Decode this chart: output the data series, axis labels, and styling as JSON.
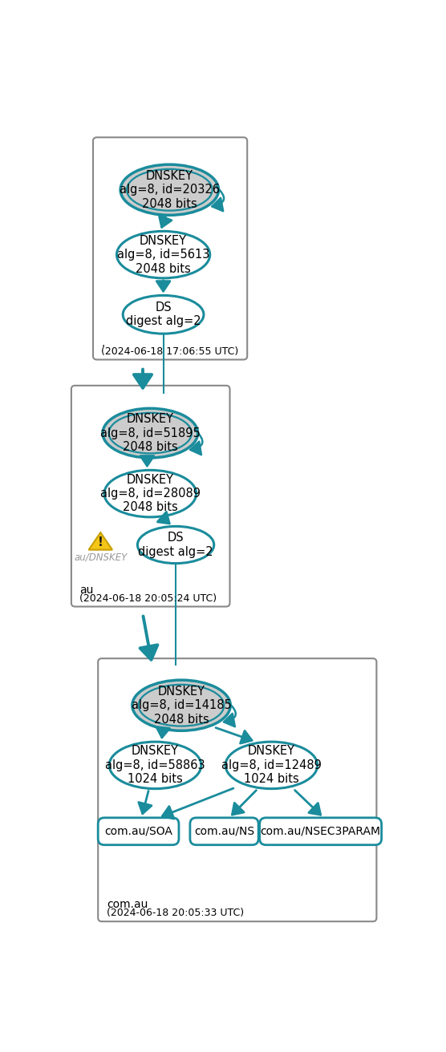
{
  "teal": "#1a8c9c",
  "gray_fill": "#cccccc",
  "white_fill": "#ffffff",
  "warn_yellow": "#f5c518",
  "warn_edge": "#c8a000",
  "zone1_label": ".",
  "zone1_time": "(2024-06-18 17:06:55 UTC)",
  "zone1_ksk": "DNSKEY\nalg=8, id=20326\n2048 bits",
  "zone1_zsk": "DNSKEY\nalg=8, id=5613\n2048 bits",
  "zone1_ds": "DS\ndigest alg=2",
  "zone2_label": "au",
  "zone2_time": "(2024-06-18 20:05:24 UTC)",
  "zone2_ksk": "DNSKEY\nalg=8, id=51895\n2048 bits",
  "zone2_zsk": "DNSKEY\nalg=8, id=28089\n2048 bits",
  "zone2_ds": "DS\ndigest alg=2",
  "zone2_warn": "au/DNSKEY",
  "zone3_label": "com.au",
  "zone3_time": "(2024-06-18 20:05:33 UTC)",
  "zone3_ksk": "DNSKEY\nalg=8, id=14185\n2048 bits",
  "zone3_zsk1": "DNSKEY\nalg=8, id=58863\n1024 bits",
  "zone3_zsk2": "DNSKEY\nalg=8, id=12489\n1024 bits",
  "zone3_rec1": "com.au/SOA",
  "zone3_rec2": "com.au/NS",
  "zone3_rec3": "com.au/NSEC3PARAM"
}
